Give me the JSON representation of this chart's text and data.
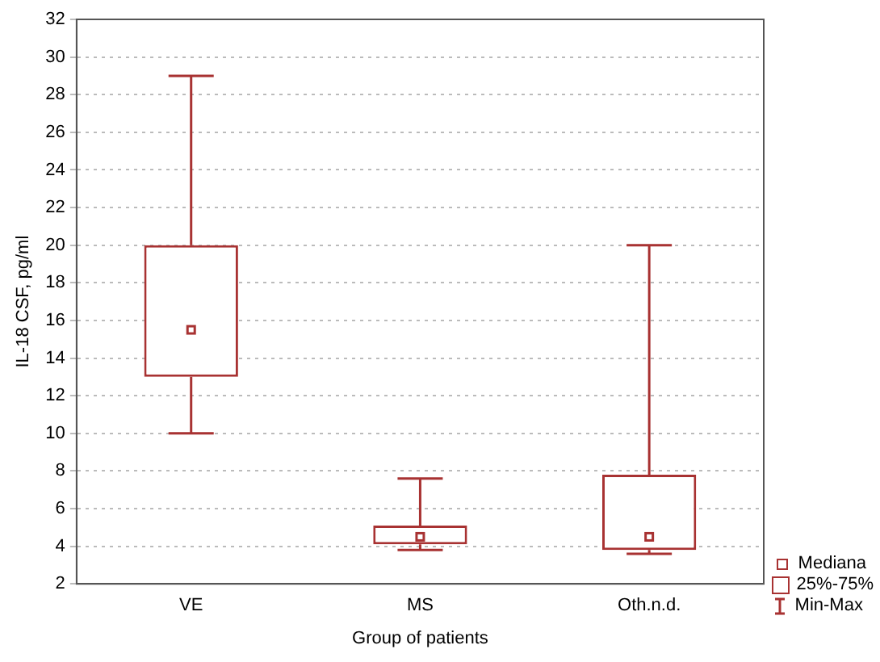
{
  "chart_data": {
    "type": "box",
    "xlabel": "Group of patients",
    "ylabel": "IL-18 CSF, pg/ml",
    "categories": [
      "VE",
      "MS",
      "Oth.n.d."
    ],
    "series": [
      {
        "color": "#a83232",
        "boxes": [
          {
            "low": 10,
            "q1": 13,
            "median": 15.5,
            "q3": 20,
            "high": 29
          },
          {
            "low": 3.8,
            "q1": 4.1,
            "median": 4.5,
            "q3": 5.1,
            "high": 7.6
          },
          {
            "low": 3.6,
            "q1": 3.8,
            "median": 4.5,
            "q3": 7.8,
            "high": 20
          }
        ]
      }
    ],
    "ylim": [
      2,
      32
    ],
    "yticks": [
      2,
      4,
      6,
      8,
      10,
      12,
      14,
      16,
      18,
      20,
      22,
      24,
      26,
      28,
      30,
      32
    ],
    "grid": "y",
    "annotations": [
      "Mediana",
      "25%-75%",
      "Min-Max"
    ]
  }
}
